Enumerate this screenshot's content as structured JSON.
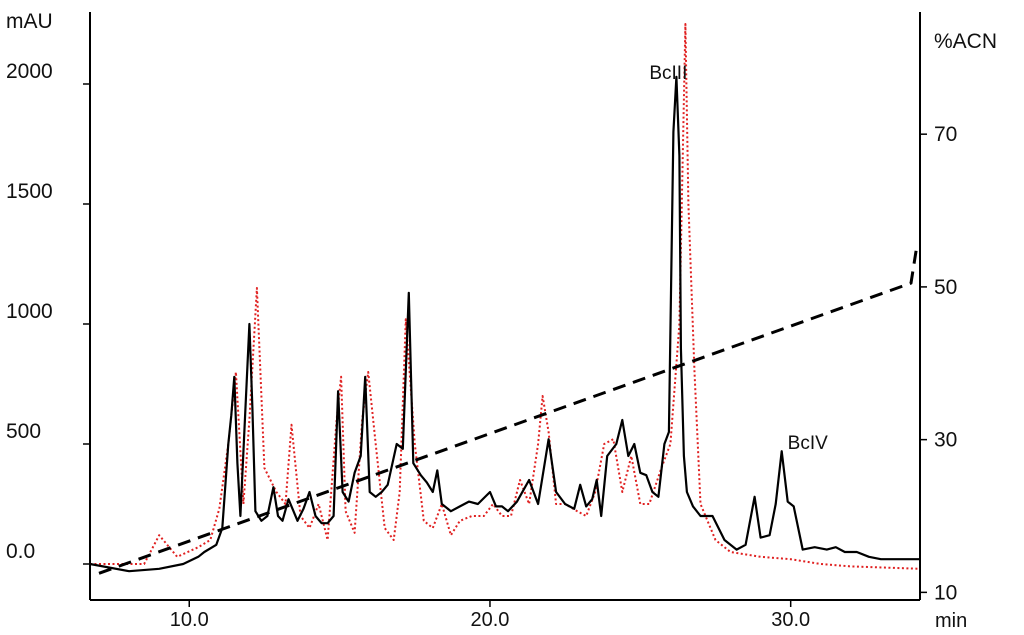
{
  "chart_data": {
    "type": "line",
    "xlabel": "min",
    "ylabel_left": "mAU",
    "ylabel_right": "%ACN",
    "xlim": [
      6.7,
      34.3
    ],
    "ylim_left": [
      -150,
      2300
    ],
    "ylim_right": [
      9,
      86
    ],
    "x_ticks": [
      10,
      20,
      30
    ],
    "x_tick_labels": [
      "10.0",
      "20.0",
      "30.0"
    ],
    "y_left_ticks": [
      0,
      500,
      1000,
      1500,
      2000
    ],
    "y_left_tick_labels": [
      "0.0",
      "500",
      "1000",
      "1500",
      "2000"
    ],
    "y_right_ticks": [
      10,
      30,
      50,
      70
    ],
    "y_right_tick_labels": [
      "10",
      "30",
      "50",
      "70"
    ],
    "grid": false,
    "annotations": [
      {
        "text": "BcIII",
        "x": 25.3,
        "y": 2020
      },
      {
        "text": "BcIV",
        "x": 29.9,
        "y": 480
      }
    ],
    "series": [
      {
        "style": "solid",
        "color": "#000000",
        "axis": "left",
        "x": [
          6.7,
          8.0,
          9.0,
          9.8,
          10.3,
          10.5,
          10.9,
          11.1,
          11.3,
          11.4,
          11.5,
          11.6,
          11.7,
          11.85,
          12.0,
          12.1,
          12.2,
          12.4,
          12.6,
          12.8,
          12.95,
          13.1,
          13.3,
          13.6,
          13.8,
          14.0,
          14.2,
          14.4,
          14.6,
          14.8,
          14.95,
          15.1,
          15.3,
          15.5,
          15.7,
          15.85,
          16.0,
          16.2,
          16.4,
          16.6,
          16.9,
          17.1,
          17.3,
          17.45,
          17.7,
          17.9,
          18.1,
          18.25,
          18.4,
          18.7,
          19.0,
          19.3,
          19.6,
          20.0,
          20.2,
          20.4,
          20.6,
          20.9,
          21.3,
          21.6,
          21.95,
          22.2,
          22.5,
          22.8,
          23.0,
          23.2,
          23.4,
          23.55,
          23.7,
          23.9,
          24.2,
          24.4,
          24.6,
          24.8,
          25.0,
          25.2,
          25.4,
          25.6,
          25.8,
          25.95,
          26.1,
          26.2,
          26.3,
          26.35,
          26.45,
          26.55,
          26.75,
          27.0,
          27.4,
          27.8,
          28.2,
          28.5,
          28.8,
          29.0,
          29.3,
          29.5,
          29.7,
          29.9,
          30.1,
          30.4,
          30.8,
          31.2,
          31.5,
          31.8,
          32.2,
          32.6,
          33.0,
          34.3
        ],
        "y": [
          0,
          -30,
          -20,
          0,
          30,
          50,
          80,
          150,
          500,
          620,
          780,
          420,
          200,
          600,
          1000,
          650,
          220,
          180,
          200,
          320,
          200,
          180,
          270,
          180,
          230,
          300,
          200,
          170,
          170,
          200,
          720,
          300,
          260,
          380,
          450,
          780,
          300,
          280,
          300,
          330,
          500,
          480,
          1130,
          420,
          370,
          340,
          300,
          390,
          250,
          220,
          240,
          260,
          250,
          300,
          240,
          240,
          220,
          260,
          350,
          250,
          520,
          300,
          250,
          230,
          330,
          240,
          270,
          350,
          200,
          450,
          500,
          600,
          450,
          500,
          380,
          370,
          300,
          280,
          500,
          550,
          1800,
          2030,
          1700,
          900,
          450,
          300,
          240,
          200,
          200,
          100,
          60,
          80,
          280,
          110,
          120,
          250,
          470,
          260,
          240,
          60,
          70,
          60,
          70,
          50,
          50,
          30,
          20,
          20
        ]
      },
      {
        "style": "dotted",
        "color": "#e02020",
        "axis": "left",
        "x": [
          6.7,
          8.5,
          9.0,
          9.6,
          10.3,
          10.7,
          11.0,
          11.3,
          11.55,
          11.8,
          12.0,
          12.25,
          12.5,
          12.9,
          13.2,
          13.4,
          13.7,
          14.0,
          14.3,
          14.6,
          14.9,
          15.05,
          15.2,
          15.5,
          15.75,
          15.95,
          16.2,
          16.5,
          16.8,
          17.0,
          17.2,
          17.5,
          17.8,
          18.1,
          18.4,
          18.7,
          19.0,
          19.4,
          19.8,
          20.1,
          20.4,
          20.7,
          21.0,
          21.3,
          21.6,
          21.75,
          21.95,
          22.2,
          22.5,
          22.9,
          23.2,
          23.5,
          23.8,
          24.1,
          24.4,
          24.7,
          25.0,
          25.3,
          25.7,
          26.0,
          26.3,
          26.5,
          26.6,
          26.8,
          27.0,
          27.5,
          28.0,
          29.0,
          30.0,
          31.0,
          32.0,
          34.3
        ],
        "y": [
          0,
          0,
          120,
          30,
          70,
          100,
          230,
          500,
          800,
          250,
          600,
          1150,
          400,
          300,
          250,
          580,
          200,
          150,
          250,
          100,
          600,
          780,
          220,
          130,
          600,
          800,
          500,
          150,
          100,
          300,
          1020,
          500,
          180,
          150,
          250,
          120,
          180,
          200,
          200,
          250,
          200,
          200,
          350,
          250,
          500,
          700,
          550,
          250,
          250,
          220,
          200,
          300,
          500,
          520,
          300,
          450,
          250,
          250,
          400,
          500,
          1000,
          2250,
          1500,
          800,
          250,
          100,
          50,
          30,
          20,
          0,
          -10,
          -20
        ]
      },
      {
        "style": "dashed",
        "color": "#000000",
        "axis": "right",
        "x": [
          7.0,
          34.0,
          34.2
        ],
        "y": [
          12.5,
          50.5,
          55.5
        ]
      }
    ]
  }
}
